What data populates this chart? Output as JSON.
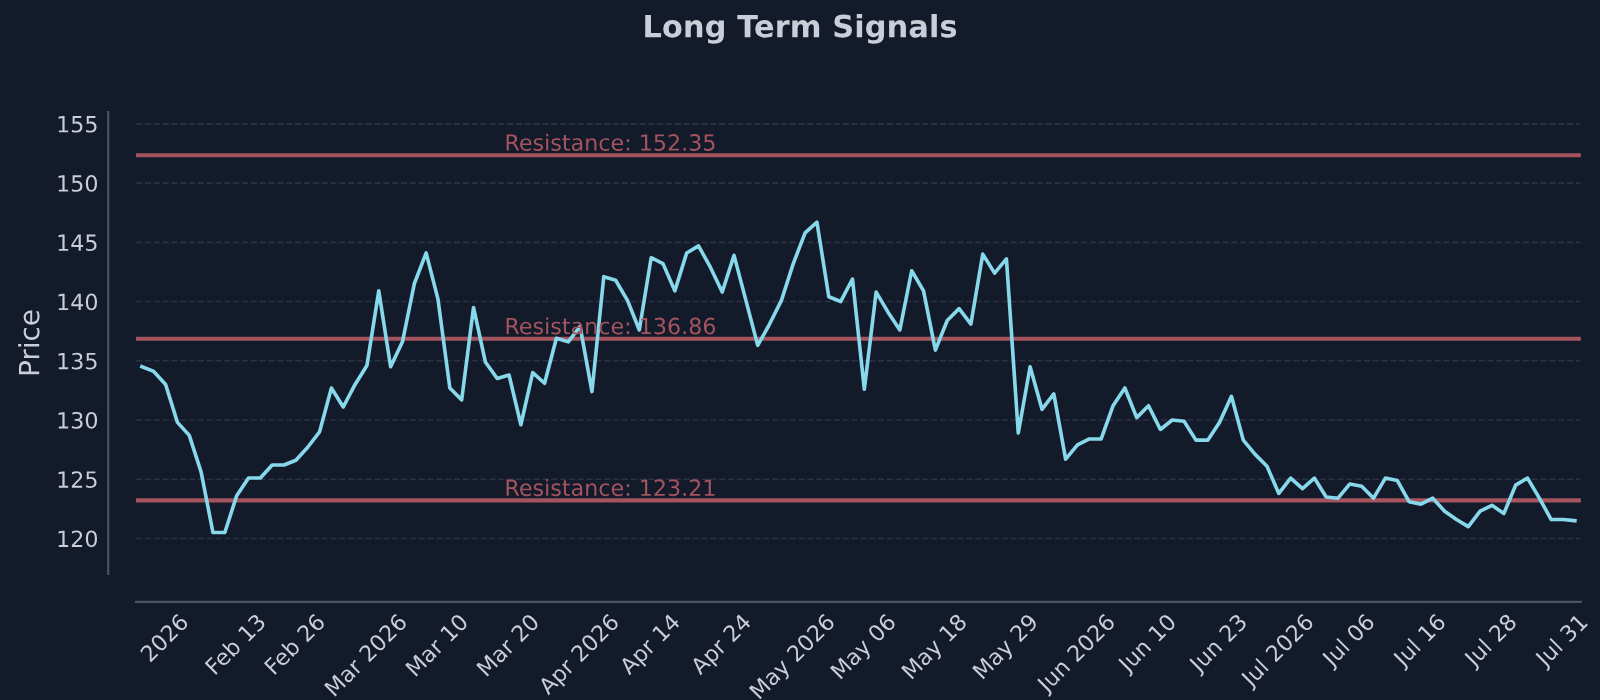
{
  "chart_data": {
    "type": "line",
    "title": "Long Term Signals",
    "ylabel": "Price",
    "categories": [
      null,
      null,
      "2026",
      null,
      null,
      null,
      null,
      null,
      "Feb 13",
      null,
      null,
      null,
      null,
      "Feb 26",
      null,
      null,
      null,
      null,
      null,
      "Mar 2026",
      null,
      null,
      null,
      null,
      null,
      "Mar 10",
      null,
      null,
      null,
      null,
      null,
      "Mar 20",
      null,
      null,
      null,
      null,
      null,
      "Apr 2026",
      null,
      null,
      null,
      null,
      null,
      "Apr 14",
      null,
      null,
      null,
      null,
      null,
      "Apr 24",
      null,
      null,
      null,
      null,
      null,
      "May 2026",
      null,
      null,
      null,
      null,
      null,
      "May 06",
      null,
      null,
      null,
      null,
      null,
      "May 18",
      null,
      null,
      null,
      null,
      null,
      "May 29",
      null,
      null,
      null,
      null,
      null,
      "Jun 2026",
      null,
      null,
      null,
      null,
      null,
      "Jun 10",
      null,
      null,
      null,
      null,
      null,
      "Jun 23",
      null,
      null,
      null,
      null,
      "Jul 2026",
      null,
      null,
      null,
      null,
      null,
      "Jul 06",
      null,
      null,
      null,
      null,
      null,
      "Jul 16",
      null,
      null,
      null,
      null,
      null,
      "Jul 28",
      null,
      null,
      null,
      null,
      null,
      "Jul 31",
      null
    ],
    "series": [
      {
        "color": "#86d8ea",
        "values": [
          134.5,
          134.1,
          133.0,
          129.8,
          128.7,
          125.6,
          120.5,
          120.5,
          123.6,
          125.1,
          125.1,
          126.2,
          126.2,
          126.6,
          127.7,
          129.0,
          132.7,
          131.1,
          133.0,
          134.6,
          140.9,
          134.5,
          136.6,
          141.5,
          144.1,
          140.2,
          132.7,
          131.7,
          139.5,
          134.9,
          133.5,
          133.8,
          129.6,
          134.0,
          133.1,
          136.9,
          136.6,
          137.9,
          132.4,
          142.1,
          141.8,
          140.1,
          137.6,
          143.7,
          143.2,
          140.9,
          144.1,
          144.7,
          142.9,
          140.8,
          143.9,
          140.1,
          136.3,
          138.1,
          140.1,
          143.2,
          145.8,
          146.7,
          140.4,
          140.0,
          141.9,
          132.6,
          140.8,
          139.1,
          137.6,
          142.6,
          140.9,
          135.9,
          138.4,
          139.4,
          138.1,
          144.0,
          142.4,
          143.6,
          128.9,
          134.5,
          130.9,
          132.2,
          126.7,
          127.9,
          128.4,
          128.4,
          131.2,
          132.7,
          130.2,
          131.2,
          129.2,
          130.0,
          129.9,
          128.3,
          128.3,
          129.8,
          132.0,
          128.3,
          127.1,
          126.1,
          123.8,
          125.1,
          124.2,
          125.1,
          123.5,
          123.4,
          124.6,
          124.4,
          123.4,
          125.1,
          124.9,
          123.1,
          122.9,
          123.4,
          122.3,
          121.6,
          121.0,
          122.3,
          122.8,
          122.1,
          124.5,
          125.1,
          123.4,
          121.6,
          121.6,
          121.5
        ]
      }
    ],
    "ylim": [
      117,
      156
    ],
    "yticks": [
      120,
      125,
      130,
      135,
      140,
      145,
      150,
      155
    ],
    "grid": "y",
    "ref_lines": [
      {
        "axis": "y",
        "value": 152.35,
        "label": "Resistance: 152.35",
        "color": "#a4545f"
      },
      {
        "axis": "y",
        "value": 136.86,
        "label": "Resistance: 136.86",
        "color": "#a4545f"
      },
      {
        "axis": "y",
        "value": 123.21,
        "label": "Resistance: 123.21",
        "color": "#a4545f"
      }
    ],
    "legend": false,
    "marker": "none",
    "line_style": "solid"
  }
}
